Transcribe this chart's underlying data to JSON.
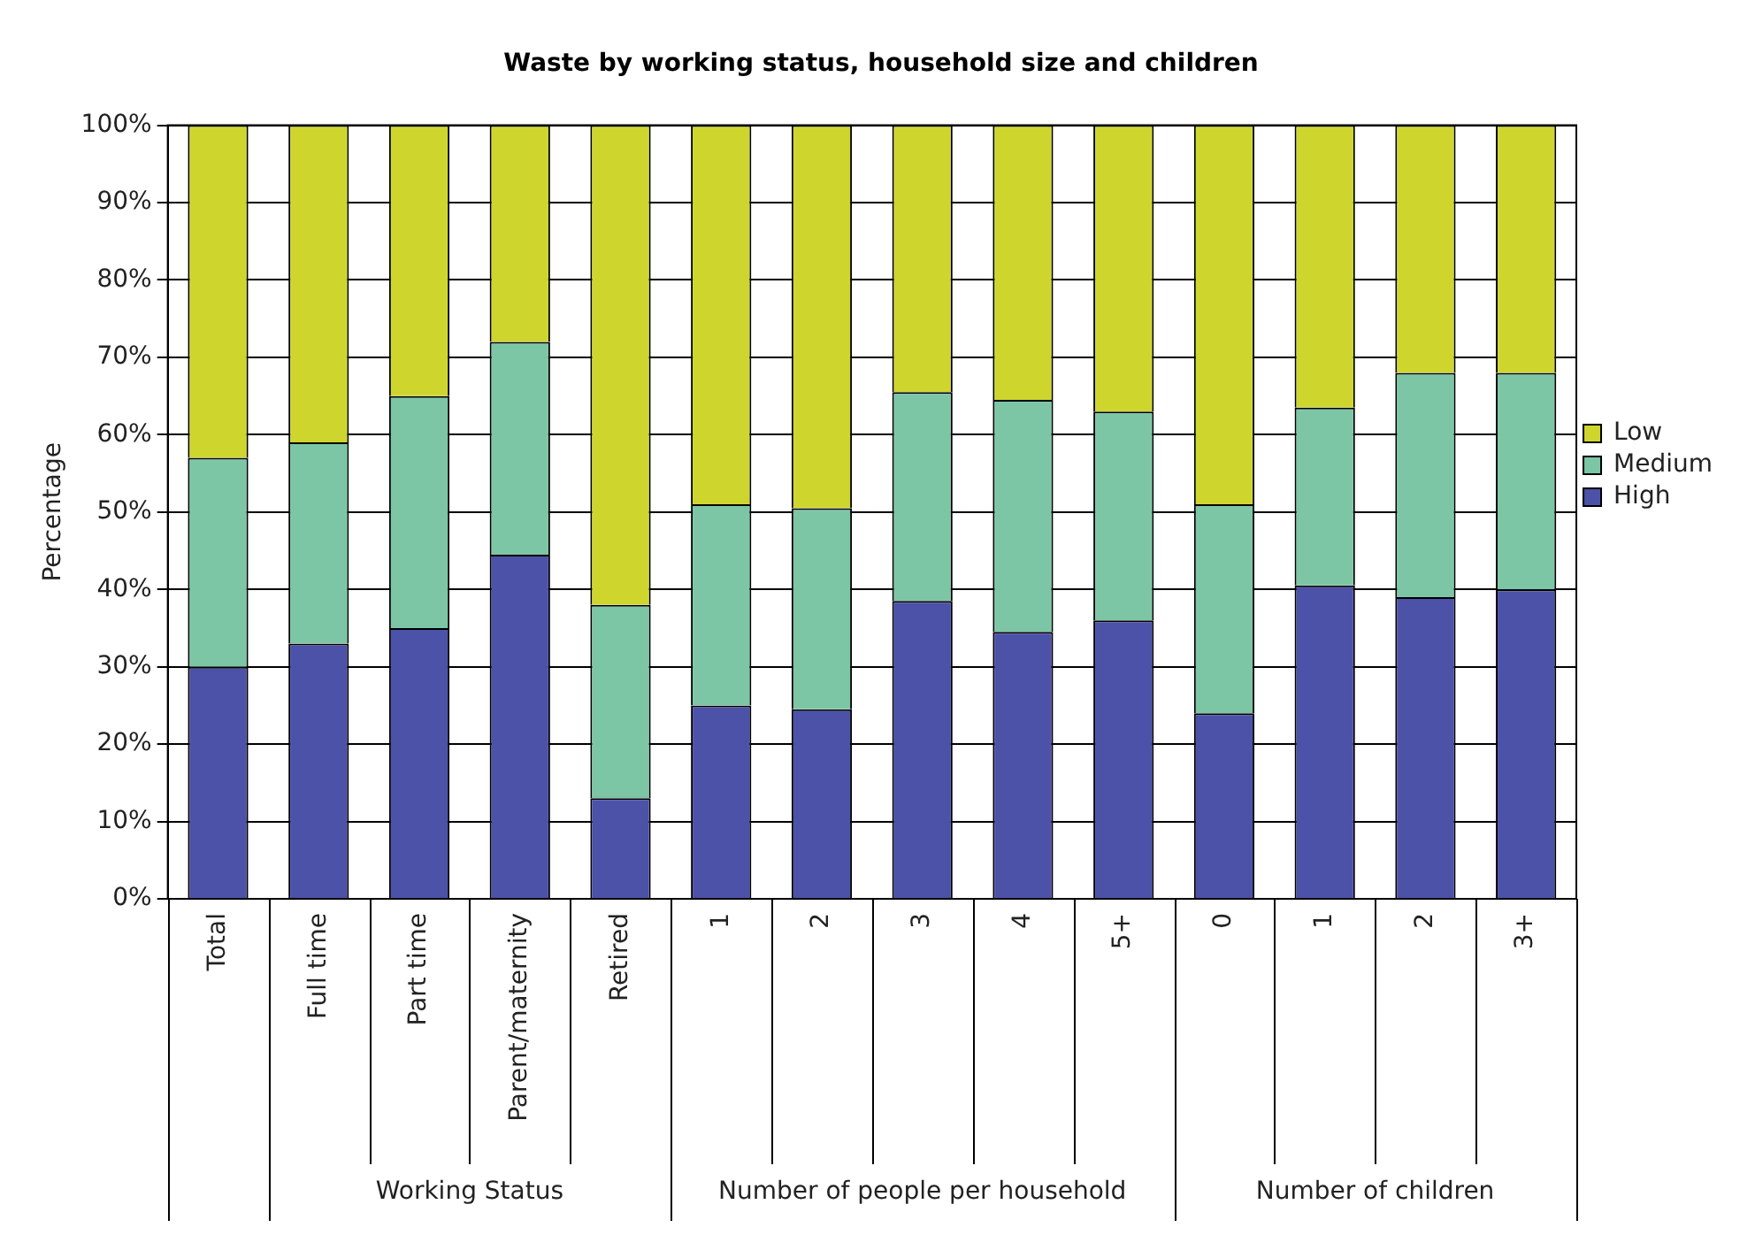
{
  "chart_data": {
    "type": "bar",
    "title": "Waste by working status, household size and children",
    "ylabel": "Percentage",
    "categories": [
      "Total",
      "Full time",
      "Part time",
      "Parent/maternity",
      "Retired",
      "1",
      "2",
      "3",
      "4",
      "5+",
      "0",
      "1",
      "2",
      "3+"
    ],
    "stacked": true,
    "ylim": [
      0,
      100
    ],
    "yticks": [
      {
        "value": 0,
        "label": "0%"
      },
      {
        "value": 10,
        "label": "10%"
      },
      {
        "value": 20,
        "label": "20%"
      },
      {
        "value": 30,
        "label": "30%"
      },
      {
        "value": 40,
        "label": "40%"
      },
      {
        "value": 50,
        "label": "50%"
      },
      {
        "value": 60,
        "label": "60%"
      },
      {
        "value": 70,
        "label": "70%"
      },
      {
        "value": 80,
        "label": "80%"
      },
      {
        "value": 90,
        "label": "90%"
      },
      {
        "value": 100,
        "label": "100%"
      }
    ],
    "grid": "y",
    "legend": "right",
    "series": [
      {
        "name": "High",
        "color": "#4c52a8",
        "values": [
          30,
          33,
          35,
          44.5,
          13,
          25,
          24.5,
          38.5,
          34.5,
          36,
          24,
          40.5,
          39,
          40
        ]
      },
      {
        "name": "Medium",
        "color": "#7cc6a6",
        "values": [
          27,
          26,
          30,
          27.5,
          25,
          26,
          26,
          27,
          30,
          27,
          27,
          23,
          29,
          28
        ]
      },
      {
        "name": "Low",
        "color": "#ced62e",
        "values": [
          43,
          41,
          35,
          28,
          62,
          49,
          49.5,
          34.5,
          35.5,
          37,
          49,
          36.5,
          32,
          32
        ]
      }
    ],
    "annotations": [
      "Working Status",
      "Number of people per household",
      "Number of children"
    ]
  }
}
